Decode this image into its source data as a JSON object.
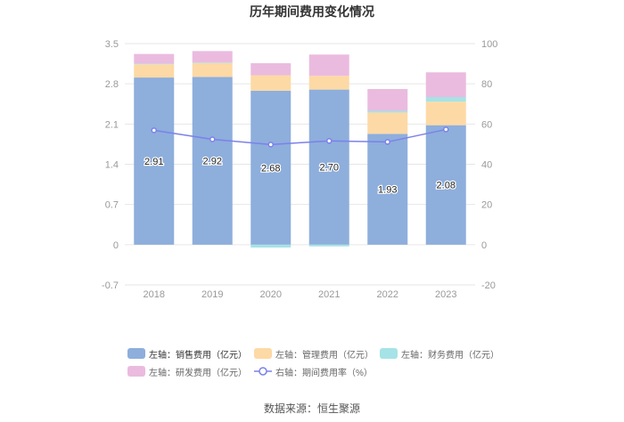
{
  "chart_data": {
    "type": "bar",
    "stacked": true,
    "title": "历年期间费用变化情况",
    "categories": [
      "2018",
      "2019",
      "2020",
      "2021",
      "2022",
      "2023"
    ],
    "ylim_left": [
      -0.7,
      3.5
    ],
    "yticks_left": [
      3.5,
      2.8,
      2.1,
      1.4,
      0.7,
      0,
      -0.7
    ],
    "ylim_right": [
      -20,
      100
    ],
    "yticks_right": [
      100,
      80,
      60,
      40,
      20,
      0,
      -20
    ],
    "grid": true,
    "legend_position": "bottom",
    "series": [
      {
        "key": "sales",
        "name": "左轴：销售费用（亿元）",
        "type": "bar",
        "axis": "left",
        "color": "#8eaedc",
        "values": [
          2.91,
          2.92,
          2.68,
          2.7,
          1.93,
          2.08
        ],
        "show_labels": true
      },
      {
        "key": "admin",
        "name": "左轴：管理费用（亿元）",
        "type": "bar",
        "axis": "left",
        "color": "#fdd9a5",
        "values": [
          0.23,
          0.24,
          0.27,
          0.24,
          0.37,
          0.41
        ],
        "show_labels": false
      },
      {
        "key": "finance",
        "name": "左轴：财务费用（亿元）",
        "type": "bar",
        "axis": "left",
        "color": "#a5e3e6",
        "values": [
          0.01,
          0.01,
          -0.05,
          -0.03,
          0.03,
          0.08
        ],
        "show_labels": false
      },
      {
        "key": "rnd",
        "name": "左轴：研发费用（亿元）",
        "type": "bar",
        "axis": "left",
        "color": "#eabbdf",
        "values": [
          0.17,
          0.2,
          0.21,
          0.37,
          0.38,
          0.43
        ],
        "show_labels": false
      },
      {
        "key": "rate",
        "name": "右轴：期间费用率（%）",
        "type": "line",
        "axis": "right",
        "color": "#7b81ea",
        "values": [
          56.9,
          52.4,
          49.8,
          51.6,
          51.1,
          57.3
        ],
        "show_labels": false
      }
    ]
  },
  "source": "数据来源：恒生聚源",
  "colors": {
    "grid": "#e6e6e6",
    "axis_text": "#999999"
  }
}
